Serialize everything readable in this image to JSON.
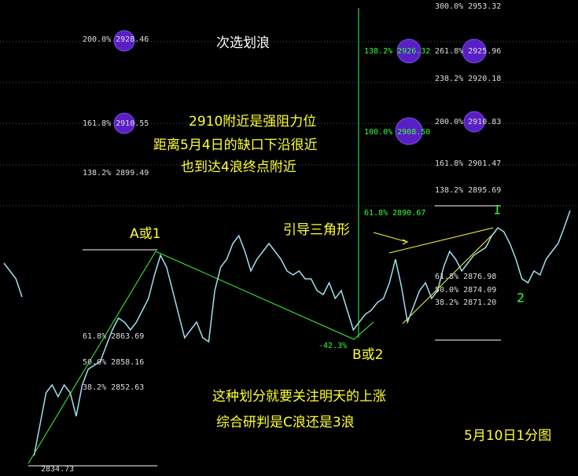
{
  "chart_data": {
    "type": "line",
    "title": "次选划浪",
    "subtitle": "5月10日1分图",
    "color": "#9fe0f0",
    "values": [
      2879.56,
      2877.83,
      2876.11,
      2872.14,
      null,
      2837.32,
      2844.21,
      2851.11,
      2852.83,
      2850.25,
      2852.83,
      2851.11,
      2845.94,
      2852.83,
      2856.28,
      2857.14,
      2858.01,
      2861.45,
      2864.9,
      2867.49,
      2866.63,
      2864.9,
      2866.63,
      2869.21,
      2871.8,
      2876.97,
      2881.28,
      2878.7,
      2873.52,
      2868.35,
      2863.18,
      2864.9,
      2866.63,
      2863.18,
      2862.32,
      2873.52,
      2878.7,
      2880.42,
      2883.87,
      2885.59,
      2882.14,
      2877.83,
      2880.42,
      2882.14,
      2883.87,
      2882.14,
      2880.42,
      2877.83,
      2876.97,
      2877.83,
      2876.11,
      2876.11,
      2873.52,
      2872.66,
      2875.25,
      2871.8,
      2873.52,
      2869.21,
      2864.9,
      2866.63,
      2868.35,
      2869.21,
      2870.94,
      2871.8,
      2875.25,
      2880.42,
      2874.38,
      2866.63,
      2870.07,
      2873.52,
      2875.25,
      2871.8,
      2873.52,
      2878.7,
      2882.14,
      2880.42,
      2877.83,
      2879.56,
      2881.28,
      2882.14,
      2883.01,
      2885.59,
      2887.32,
      2886.45,
      2883.87,
      2880.42,
      2876.11,
      2875.25,
      2877.83,
      2876.97,
      2880.42,
      2882.14,
      2883.87,
      2887.32,
      2891.11
    ],
    "annotations": [
      "2910附近是强阻力位",
      "距离5月4日的缺口下沿很近",
      "也到达4浪终点附近",
      "A或1",
      "B或2",
      "-42.3%",
      "引导三角形",
      "1",
      "2",
      "这种划分就要关注明天的上涨",
      "综合研判是C浪还是3浪"
    ],
    "levels": [
      "200.0% 2928.46",
      "161.8% 2910.55",
      "138.2% 2899.49",
      "61.8% 2863.69",
      "50.0% 2858.16",
      "38.2% 2852.63",
      "2834.73",
      "138.2% 2926.32",
      "100.0% 2908.50",
      "61.8% 2890.67",
      "300.0% 2953.32",
      "261.8% 2925.96",
      "238.2% 2920.18",
      "200.0% 2910.83",
      "161.8% 2901.47",
      "138.2% 2895.69",
      "61.8% 2876.98",
      "50.0% 2874.09",
      "38.2% 2871.20"
    ]
  }
}
